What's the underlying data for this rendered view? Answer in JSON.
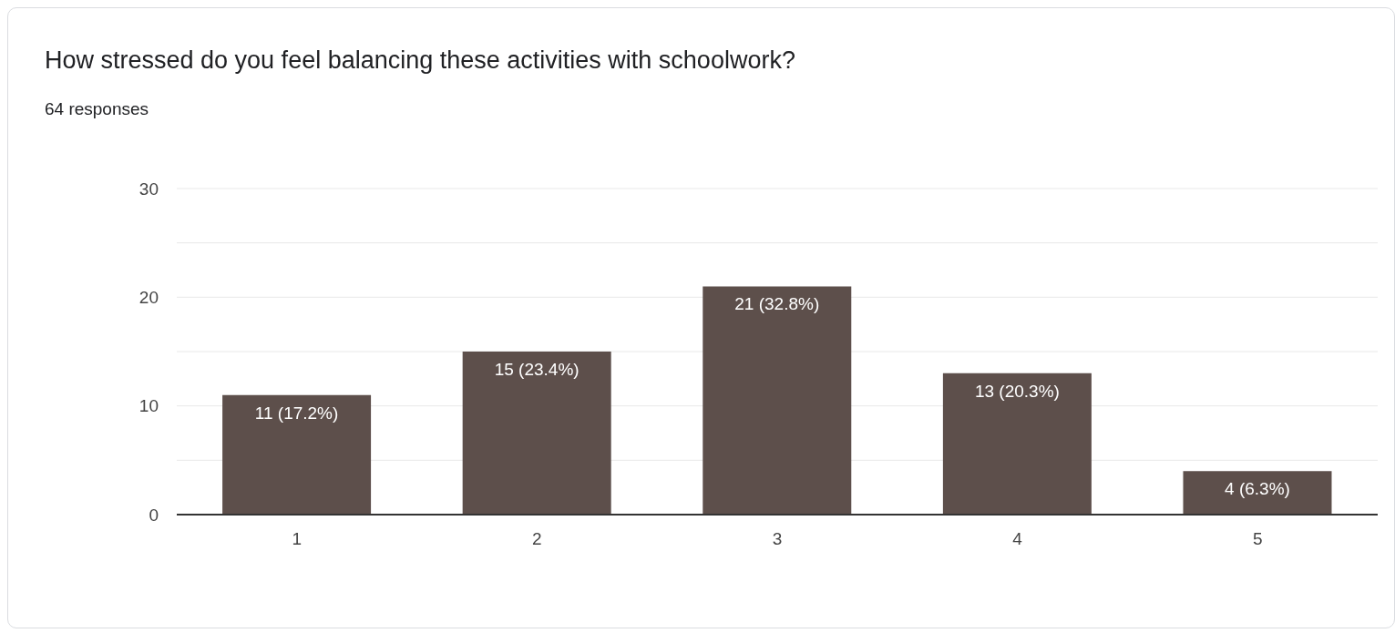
{
  "chart_data": {
    "type": "bar",
    "title": "How stressed do you feel balancing these activities with schoolwork?",
    "subtitle": "64 responses",
    "categories": [
      "1",
      "2",
      "3",
      "4",
      "5"
    ],
    "values": [
      11,
      15,
      21,
      13,
      4
    ],
    "value_labels": [
      "11 (17.2%)",
      "15 (23.4%)",
      "21 (32.8%)",
      "13 (20.3%)",
      "4 (6.3%)"
    ],
    "color": "#5d4f4b",
    "ylim": [
      0,
      30
    ],
    "yticks": [
      0,
      {
        "value": 5,
        "label": null
      },
      10,
      {
        "value": 15,
        "label": null
      },
      20,
      {
        "value": 25,
        "label": null
      },
      30
    ],
    "grid": "y"
  }
}
